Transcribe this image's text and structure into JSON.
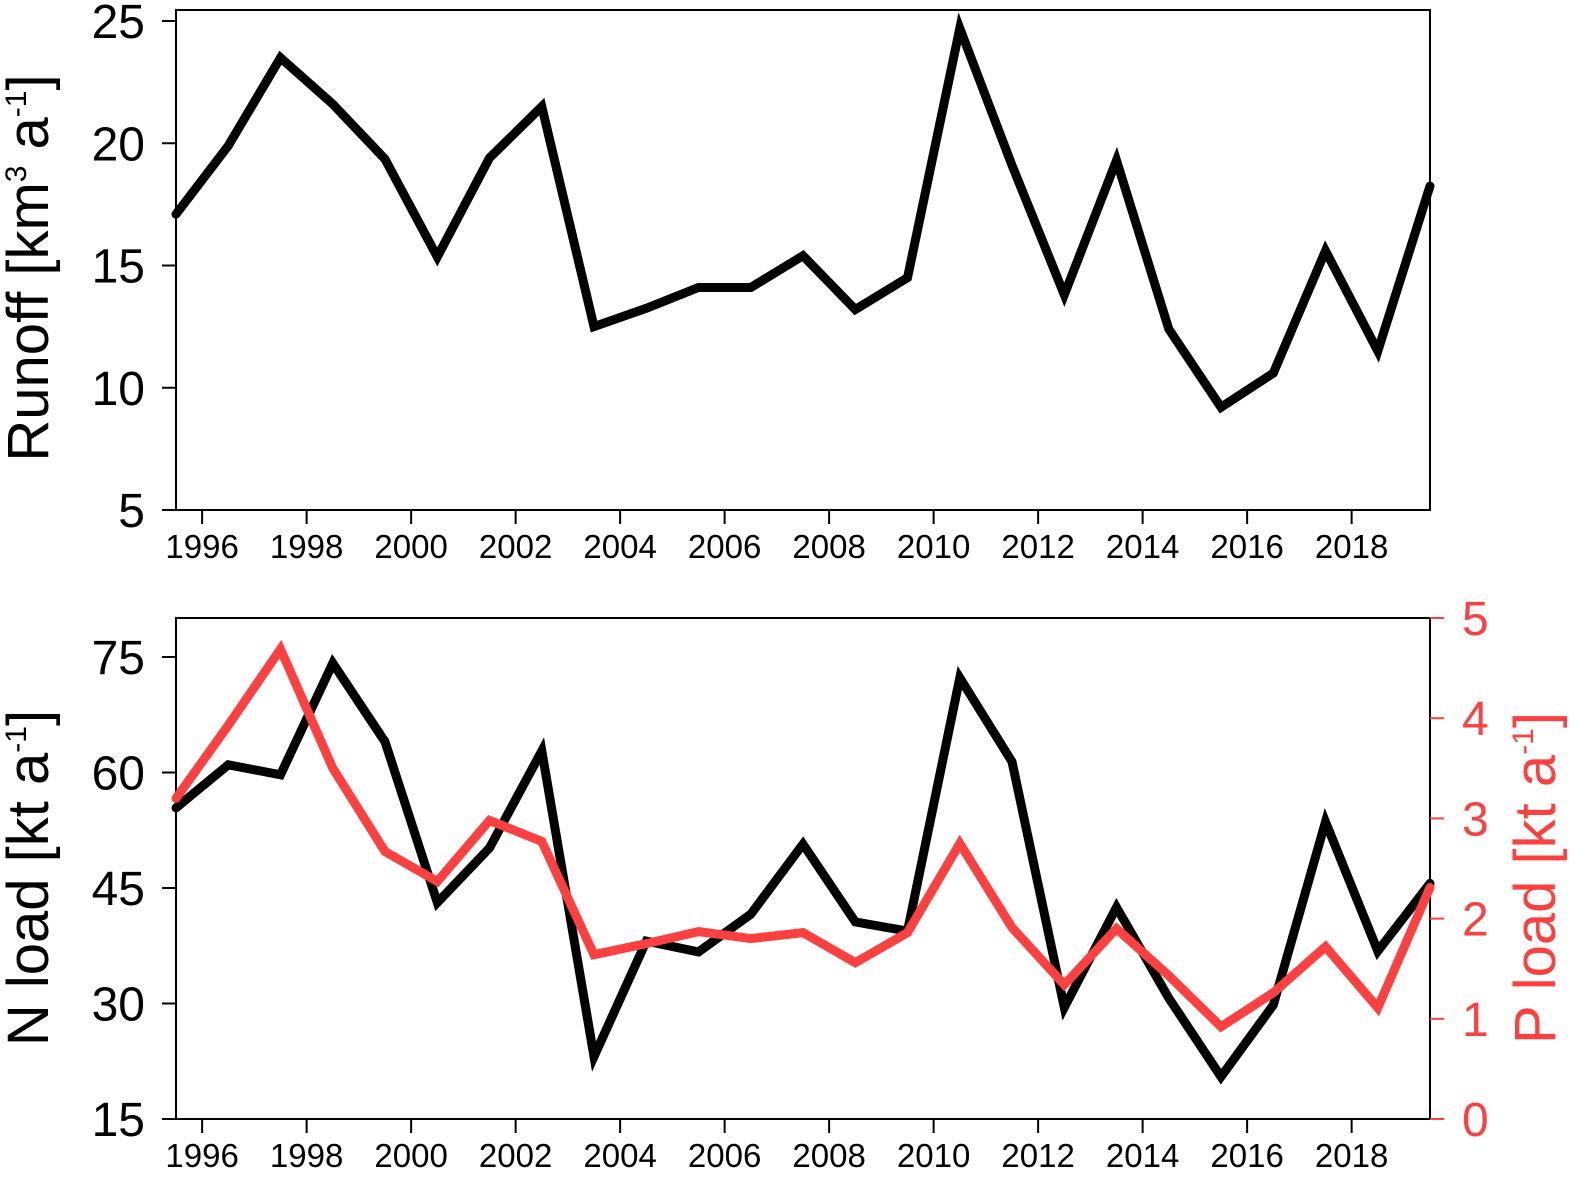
{
  "chart_data": [
    {
      "type": "line",
      "ylabel": {
        "text": "Runoff [km",
        "sup1": "3",
        "mid": " a",
        "sup2": "-1",
        "end": "]"
      },
      "xlim": [
        1995.5,
        2019.5
      ],
      "ylim": [
        5,
        25
      ],
      "xticks": [
        1996,
        1998,
        2000,
        2002,
        2004,
        2006,
        2008,
        2010,
        2012,
        2014,
        2016,
        2018
      ],
      "yticks": [
        5,
        10,
        15,
        20,
        25
      ],
      "x": [
        1995.5,
        1996.5,
        1997.5,
        1998.5,
        1999.5,
        2000.5,
        2001.5,
        2002.5,
        2003.5,
        2004.5,
        2005.5,
        2006.5,
        2007.5,
        2008.5,
        2009.5,
        2010.5,
        2011.5,
        2012.5,
        2013.5,
        2014.5,
        2015.5,
        2016.5,
        2017.5,
        2018.5,
        2019.5
      ],
      "series": [
        {
          "color": "#000000",
          "values": [
            17.1,
            19.9,
            23.5,
            21.6,
            19.35,
            15.35,
            19.4,
            21.5,
            12.5,
            13.25,
            14.1,
            14.1,
            15.4,
            13.2,
            14.5,
            24.7,
            19.1,
            13.8,
            19.3,
            12.4,
            9.2,
            10.6,
            15.6,
            11.5,
            18.25
          ]
        }
      ],
      "grid": false
    },
    {
      "type": "line",
      "ylabel": {
        "text": "N load [kt a",
        "sup": "-1",
        "end": "]"
      },
      "ylabel_right": {
        "text": "P load [kt a",
        "sup": "-1",
        "end": "]"
      },
      "xlim": [
        1995.5,
        2019.5
      ],
      "ylim": [
        15,
        75
      ],
      "ylim_right": [
        0,
        5
      ],
      "xticks": [
        1996,
        1998,
        2000,
        2002,
        2004,
        2006,
        2008,
        2010,
        2012,
        2014,
        2016,
        2018
      ],
      "yticks": [
        15,
        30,
        45,
        60,
        75
      ],
      "yticks_right": [
        0,
        1,
        2,
        3,
        4,
        5
      ],
      "x": [
        1995.5,
        1996.5,
        1997.5,
        1998.5,
        1999.5,
        2000.5,
        2001.5,
        2002.5,
        2003.5,
        2004.5,
        2005.5,
        2006.5,
        2007.5,
        2008.5,
        2009.5,
        2010.5,
        2011.5,
        2012.5,
        2013.5,
        2014.5,
        2015.5,
        2016.5,
        2017.5,
        2018.5,
        2019.5
      ],
      "series": [
        {
          "axis": "left",
          "color": "#000000",
          "values": [
            55.4,
            61.0,
            59.7,
            74.2,
            64.0,
            43.1,
            50.2,
            62.8,
            23.1,
            38.1,
            36.7,
            41.6,
            50.7,
            40.6,
            39.4,
            72.3,
            61.4,
            29.5,
            42.5,
            30.7,
            20.5,
            29.8,
            53.6,
            36.8,
            45.6
          ]
        },
        {
          "axis": "right",
          "color": "#ff4040",
          "values": [
            3.2,
            3.93,
            4.69,
            3.5,
            2.67,
            2.37,
            2.98,
            2.77,
            1.64,
            1.75,
            1.87,
            1.8,
            1.86,
            1.56,
            1.86,
            2.75,
            1.91,
            1.34,
            1.9,
            1.43,
            0.92,
            1.26,
            1.72,
            1.11,
            2.31
          ]
        }
      ],
      "grid": false
    }
  ]
}
